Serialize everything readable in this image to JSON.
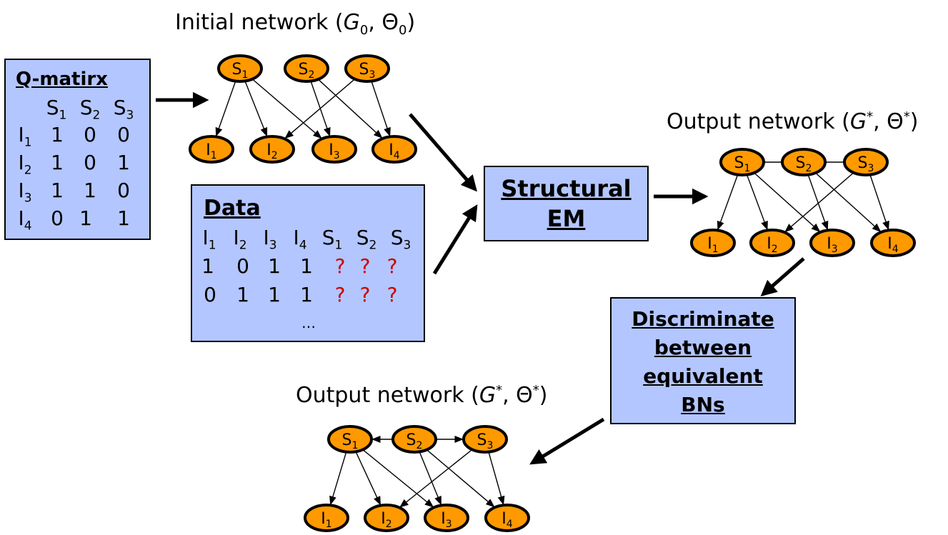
{
  "initial_network_title": {
    "main": "Initial network (",
    "g": "G",
    "g_sub": "0",
    "sep": ", Θ",
    "t_sub": "0",
    "end": ")"
  },
  "output_network_title": {
    "main": "Output network (",
    "g": "G",
    "g_sup": "*",
    "sep": ", Θ",
    "t_sup": "*",
    "end": ")"
  },
  "q_matrix": {
    "header": "Q-matirx",
    "columns": [
      "S1",
      "S2",
      "S3"
    ],
    "rows": [
      {
        "label": "I1",
        "values": [
          "1",
          "0",
          "0"
        ]
      },
      {
        "label": "I2",
        "values": [
          "1",
          "0",
          "1"
        ]
      },
      {
        "label": "I3",
        "values": [
          "1",
          "1",
          "0"
        ]
      },
      {
        "label": "I4",
        "values": [
          "0",
          "1",
          "1"
        ]
      }
    ]
  },
  "data_box": {
    "header": "Data",
    "columns": [
      "I1",
      "I2",
      "I3",
      "I4",
      "S1",
      "S2",
      "S3"
    ],
    "rows": [
      [
        "1",
        "0",
        "1",
        "1",
        "?",
        "?",
        "?"
      ],
      [
        "0",
        "1",
        "1",
        "1",
        "?",
        "?",
        "?"
      ]
    ],
    "ellipsis": "…"
  },
  "structural_em": {
    "line1": "Structural",
    "line2": "EM"
  },
  "discriminate": {
    "line1": "Discriminate",
    "line2": "between",
    "line3": "equivalent",
    "line4": "BNs"
  },
  "nodes": {
    "skills": [
      "S1",
      "S2",
      "S3"
    ],
    "items": [
      "I1",
      "I2",
      "I3",
      "I4"
    ]
  },
  "colors": {
    "node_fill": "#ff9900",
    "box_fill": "#b3c6ff",
    "question": "#cc0000"
  }
}
